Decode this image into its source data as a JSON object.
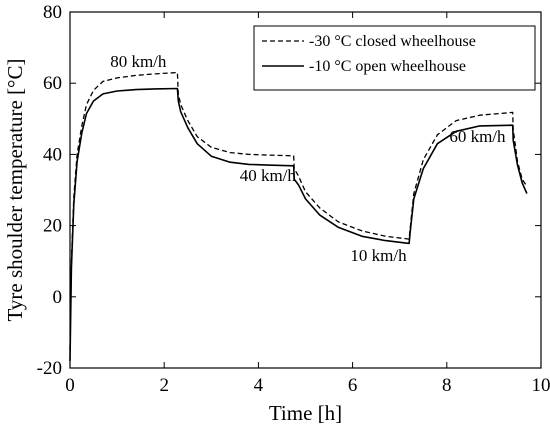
{
  "chart_data": {
    "type": "line",
    "title": "",
    "xlabel": "Time [h]",
    "ylabel": "Tyre shoulder temperature [°C]",
    "xlim": [
      0,
      10
    ],
    "ylim": [
      -20,
      80
    ],
    "xticks": [
      0,
      2,
      4,
      6,
      8,
      10
    ],
    "yticks": [
      -20,
      0,
      20,
      40,
      60,
      80
    ],
    "grid": false,
    "legend": "top-right",
    "annotations": [
      {
        "text": "80 km/h",
        "x": 1.45,
        "y": 64.5
      },
      {
        "text": "40 km/h",
        "x": 4.2,
        "y": 32.5
      },
      {
        "text": "10 km/h",
        "x": 6.55,
        "y": 10
      },
      {
        "text": "60 km/h",
        "x": 8.65,
        "y": 43.5
      }
    ],
    "series": [
      {
        "name": "-30 °C closed wheelhouse",
        "style": "dashed",
        "x": [
          0,
          0.03,
          0.08,
          0.15,
          0.25,
          0.35,
          0.5,
          0.7,
          1.0,
          1.4,
          1.8,
          2.28,
          2.3,
          2.35,
          2.5,
          2.7,
          3.0,
          3.4,
          3.8,
          4.2,
          4.75,
          4.76,
          4.85,
          5.0,
          5.3,
          5.7,
          6.2,
          6.7,
          7.2,
          7.22,
          7.3,
          7.5,
          7.8,
          8.2,
          8.7,
          9.4,
          9.41,
          9.5,
          9.6,
          9.7
        ],
        "y": [
          -15,
          10,
          28,
          40,
          48,
          54,
          58,
          60.5,
          61.5,
          62.2,
          62.6,
          63,
          57,
          54,
          49.5,
          45,
          42,
          40.5,
          40,
          39.8,
          39.6,
          36,
          34,
          29.5,
          25,
          21,
          18.5,
          17,
          16.2,
          19,
          29,
          38.5,
          45.5,
          49.5,
          51,
          51.8,
          47,
          38,
          33,
          31
        ]
      },
      {
        "name": "-10 °C open wheelhouse",
        "style": "solid",
        "x": [
          0,
          0.03,
          0.08,
          0.15,
          0.25,
          0.35,
          0.5,
          0.7,
          1.0,
          1.4,
          1.8,
          2.28,
          2.3,
          2.35,
          2.5,
          2.7,
          3.0,
          3.4,
          3.8,
          4.2,
          4.75,
          4.76,
          4.85,
          5.0,
          5.3,
          5.7,
          6.2,
          6.7,
          7.2,
          7.22,
          7.3,
          7.5,
          7.8,
          8.2,
          8.7,
          9.4,
          9.41,
          9.5,
          9.6,
          9.7
        ],
        "y": [
          -18,
          8,
          26,
          38,
          46,
          51.5,
          55,
          57,
          57.8,
          58.2,
          58.4,
          58.5,
          55,
          52,
          47.5,
          43,
          39.5,
          37.8,
          37.2,
          37,
          36.8,
          33,
          31.5,
          27.5,
          23,
          19.5,
          17,
          15.8,
          15,
          18,
          27.5,
          36,
          43,
          46.5,
          48,
          48.2,
          44,
          37,
          32,
          29
        ]
      }
    ]
  }
}
